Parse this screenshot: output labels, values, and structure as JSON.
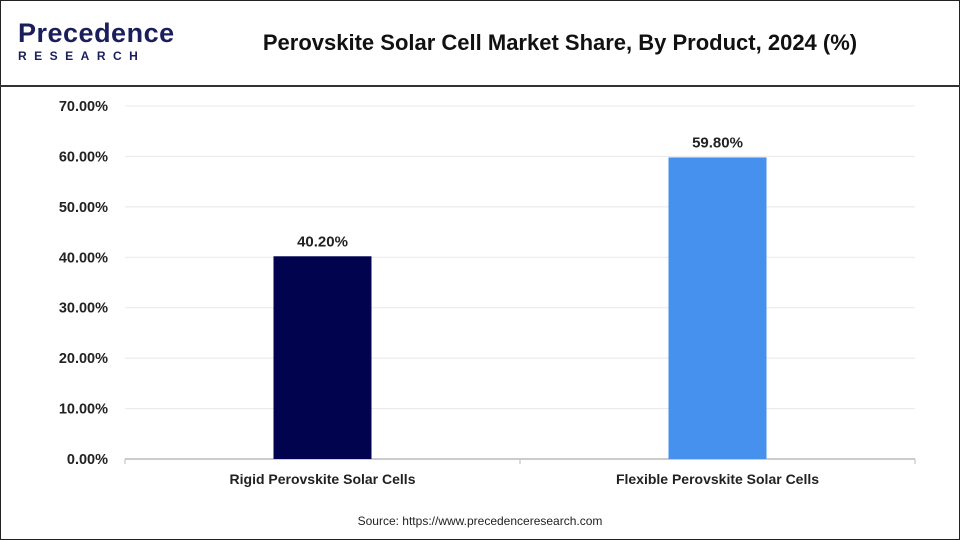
{
  "header": {
    "logo_line1": "Precedence",
    "logo_line2": "RESEARCH",
    "title": "Perovskite Solar Cell Market Share, By Product, 2024 (%)"
  },
  "footer": {
    "source": "Source: https://www.precedenceresearch.com"
  },
  "chart_data": {
    "type": "bar",
    "title": "Perovskite Solar Cell Market Share, By Product, 2024 (%)",
    "categories": [
      "Rigid Perovskite Solar Cells",
      "Flexible Perovskite Solar Cells"
    ],
    "values": [
      40.2,
      59.8
    ],
    "data_labels": [
      "40.20%",
      "59.80%"
    ],
    "colors": [
      "#01034f",
      "#4690ee"
    ],
    "ylim": [
      0,
      70
    ],
    "yticks": [
      "0.00%",
      "10.00%",
      "20.00%",
      "30.00%",
      "40.00%",
      "50.00%",
      "60.00%",
      "70.00%"
    ],
    "grid": true,
    "xlabel": "",
    "ylabel": ""
  }
}
